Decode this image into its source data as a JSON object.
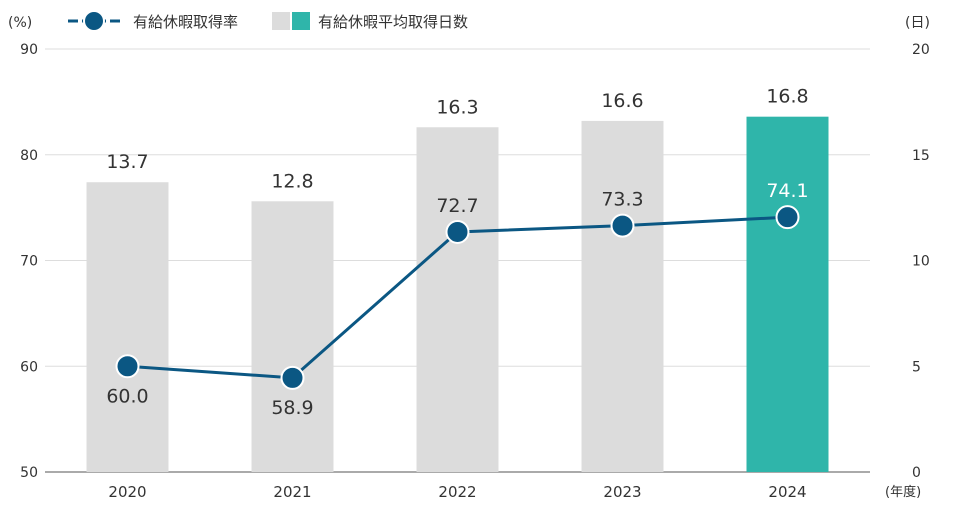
{
  "chart_data": {
    "type": "bar+line",
    "categories": [
      "2020",
      "2021",
      "2022",
      "2023",
      "2024"
    ],
    "left_axis": {
      "unit_label": "(%)",
      "ylim": [
        50,
        90
      ],
      "ticks": [
        "50",
        "60",
        "70",
        "80",
        "90"
      ]
    },
    "right_axis": {
      "unit_label": "(日)",
      "ylim": [
        0,
        20
      ],
      "ticks": [
        "0",
        "5",
        "10",
        "15",
        "20"
      ]
    },
    "x_unit_label": "(年度)",
    "grid": true,
    "legend_position": "top-left",
    "series": [
      {
        "name": "有給休暇平均取得日数",
        "type": "bar",
        "axis": "right",
        "values": [
          13.7,
          12.8,
          16.3,
          16.6,
          16.8
        ],
        "labels": [
          "13.7",
          "12.8",
          "16.3",
          "16.6",
          "16.8"
        ],
        "color": "#dcdcdc",
        "highlight_color": "#2fb5aa"
      },
      {
        "name": "有給休暇取得率",
        "type": "line",
        "axis": "left",
        "values": [
          60.0,
          58.9,
          72.7,
          73.3,
          74.1
        ],
        "labels": [
          "60.0",
          "58.9",
          "72.7",
          "73.3",
          "74.1"
        ],
        "color": "#0b5783"
      }
    ]
  }
}
